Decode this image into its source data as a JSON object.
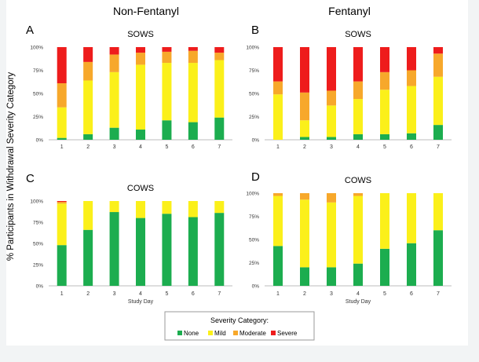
{
  "figure": {
    "group_titles": [
      "Non-Fentanyl",
      "Fentanyl"
    ],
    "shared_ylabel": "% Participants in Withdrawal Severity Category",
    "legend_title": "Severity Category:",
    "categories": [
      "None",
      "Mild",
      "Moderate",
      "Severe"
    ],
    "colors": {
      "None": "#1cad4f",
      "Mild": "#fbf01a",
      "Moderate": "#f7a82b",
      "Severe": "#ee1c1c",
      "Moderate_dark": "#e8793a"
    }
  },
  "chart_data": [
    {
      "panel": "A",
      "type": "bar",
      "stacked": true,
      "title": "SOWS",
      "xlabel": "",
      "ylabel": "",
      "ylim": [
        0,
        100
      ],
      "yticks": [
        "0%",
        "25%",
        "50%",
        "75%",
        "100%"
      ],
      "categories": [
        "1",
        "2",
        "3",
        "4",
        "5",
        "6",
        "7"
      ],
      "series": [
        {
          "name": "None",
          "values": [
            2,
            6,
            13,
            11,
            21,
            19,
            24
          ]
        },
        {
          "name": "Mild",
          "values": [
            33,
            58,
            60,
            70,
            62,
            64,
            62
          ]
        },
        {
          "name": "Moderate",
          "values": [
            26,
            20,
            19,
            13,
            12,
            13,
            8
          ]
        },
        {
          "name": "Severe",
          "values": [
            39,
            16,
            8,
            6,
            5,
            4,
            6
          ]
        }
      ]
    },
    {
      "panel": "B",
      "type": "bar",
      "stacked": true,
      "title": "SOWS",
      "xlabel": "",
      "ylabel": "",
      "ylim": [
        0,
        100
      ],
      "yticks": [
        "0%",
        "25%",
        "50%",
        "75%",
        "100%"
      ],
      "categories": [
        "1",
        "2",
        "3",
        "4",
        "5",
        "6",
        "7"
      ],
      "series": [
        {
          "name": "None",
          "values": [
            0,
            3,
            3,
            6,
            6,
            7,
            16
          ]
        },
        {
          "name": "Mild",
          "values": [
            49,
            18,
            34,
            38,
            48,
            51,
            52
          ]
        },
        {
          "name": "Moderate",
          "values": [
            14,
            30,
            16,
            19,
            19,
            17,
            25
          ]
        },
        {
          "name": "Severe",
          "values": [
            37,
            49,
            47,
            37,
            27,
            25,
            7
          ]
        }
      ]
    },
    {
      "panel": "C",
      "type": "bar",
      "stacked": true,
      "title": "COWS",
      "xlabel": "Study Day",
      "ylabel": "",
      "ylim": [
        0,
        100
      ],
      "yticks": [
        "0%",
        "25%",
        "50%",
        "75%",
        "100%"
      ],
      "categories": [
        "1",
        "2",
        "3",
        "4",
        "5",
        "6",
        "7"
      ],
      "series": [
        {
          "name": "None",
          "values": [
            48,
            66,
            87,
            80,
            85,
            81,
            86
          ]
        },
        {
          "name": "Mild",
          "values": [
            49,
            34,
            13,
            20,
            15,
            19,
            14
          ]
        },
        {
          "name": "Moderate",
          "values": [
            2,
            0,
            0,
            0,
            0,
            0,
            0
          ]
        },
        {
          "name": "Severe",
          "values": [
            1,
            0,
            0,
            0,
            0,
            0,
            0
          ]
        }
      ]
    },
    {
      "panel": "D",
      "type": "bar",
      "stacked": true,
      "title": "COWS",
      "xlabel": "Study Day",
      "ylabel": "",
      "ylim": [
        0,
        100
      ],
      "yticks": [
        "0%",
        "25%",
        "50%",
        "75%",
        "100%"
      ],
      "categories": [
        "1",
        "2",
        "3",
        "4",
        "5",
        "6",
        "7"
      ],
      "series": [
        {
          "name": "None",
          "values": [
            43,
            20,
            20,
            24,
            40,
            46,
            60
          ]
        },
        {
          "name": "Mild",
          "values": [
            54,
            73,
            70,
            73,
            60,
            54,
            40
          ]
        },
        {
          "name": "Moderate",
          "values": [
            3,
            7,
            10,
            3,
            0,
            0,
            0
          ]
        },
        {
          "name": "Severe",
          "values": [
            0,
            0,
            0,
            0,
            0,
            0,
            0
          ]
        }
      ]
    }
  ]
}
